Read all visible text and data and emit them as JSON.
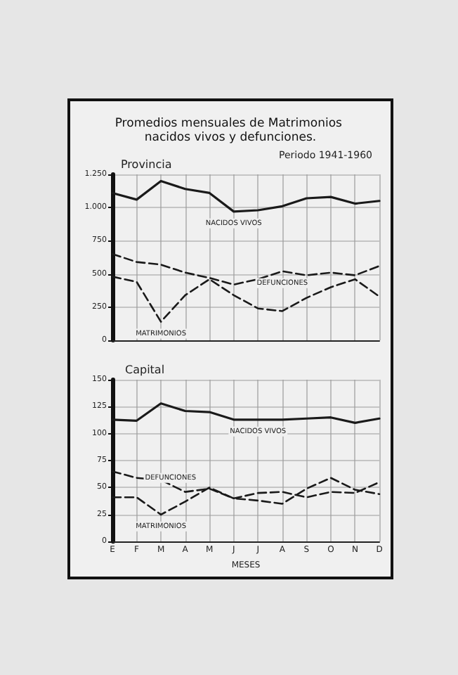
{
  "chart_data": [
    {
      "type": "line",
      "title": "Promedios mensuales de Matrimonios nacidos vivos y defunciones.",
      "subtitle": "Periodo 1941-1960",
      "annotations": [
        "Provincia"
      ],
      "categories": [
        null,
        null,
        null,
        null,
        null,
        null,
        null,
        null,
        null,
        null,
        null,
        null
      ],
      "tick_labels": "y",
      "series": [
        {
          "name": "NACIDOS VIVOS",
          "color": "#1a1a1a",
          "line_style": "solid",
          "values": [
            1110,
            1060,
            1200,
            1140,
            1110,
            970,
            980,
            1010,
            1070,
            1080,
            1030,
            1050
          ]
        },
        {
          "name": "DEFUNCIONES",
          "color": "#1a1a1a",
          "line_style": "dashed",
          "values": [
            650,
            590,
            570,
            510,
            470,
            420,
            460,
            520,
            490,
            510,
            490,
            560
          ]
        },
        {
          "name": "MATRIMONIOS",
          "color": "#1a1a1a",
          "line_style": "dashed",
          "values": [
            480,
            440,
            140,
            340,
            460,
            340,
            240,
            220,
            320,
            400,
            460,
            330
          ]
        }
      ],
      "ylim": [
        0,
        1250
      ],
      "yticks": [
        0,
        250,
        500,
        750,
        {
          "value": 1000,
          "label": "1.000"
        },
        {
          "value": 1250,
          "label": "1.250"
        }
      ],
      "grid": true,
      "legend": false
    },
    {
      "type": "line",
      "title": "Capital",
      "xlabel": "MESES",
      "categories": [
        "E",
        "F",
        "M",
        "A",
        "M",
        "J",
        "J",
        "A",
        "S",
        "O",
        "N",
        "D"
      ],
      "series": [
        {
          "name": "NACIDOS VIVOS",
          "color": "#1a1a1a",
          "line_style": "solid",
          "values": [
            113,
            112,
            128,
            121,
            120,
            113,
            113,
            113,
            114,
            115,
            110,
            114
          ]
        },
        {
          "name": "DEFUNCIONES",
          "color": "#1a1a1a",
          "line_style": "dashed",
          "values": [
            65,
            59,
            57,
            46,
            49,
            40,
            45,
            46,
            41,
            46,
            45,
            55
          ]
        },
        {
          "name": "MATRIMONIOS",
          "color": "#1a1a1a",
          "line_style": "dashed",
          "values": [
            41,
            41,
            25,
            37,
            50,
            40,
            38,
            35,
            49,
            59,
            48,
            44
          ]
        }
      ],
      "ylim": [
        0,
        150
      ],
      "yticks": [
        0,
        25,
        50,
        75,
        100,
        125,
        150
      ],
      "grid": true,
      "legend": false
    }
  ]
}
